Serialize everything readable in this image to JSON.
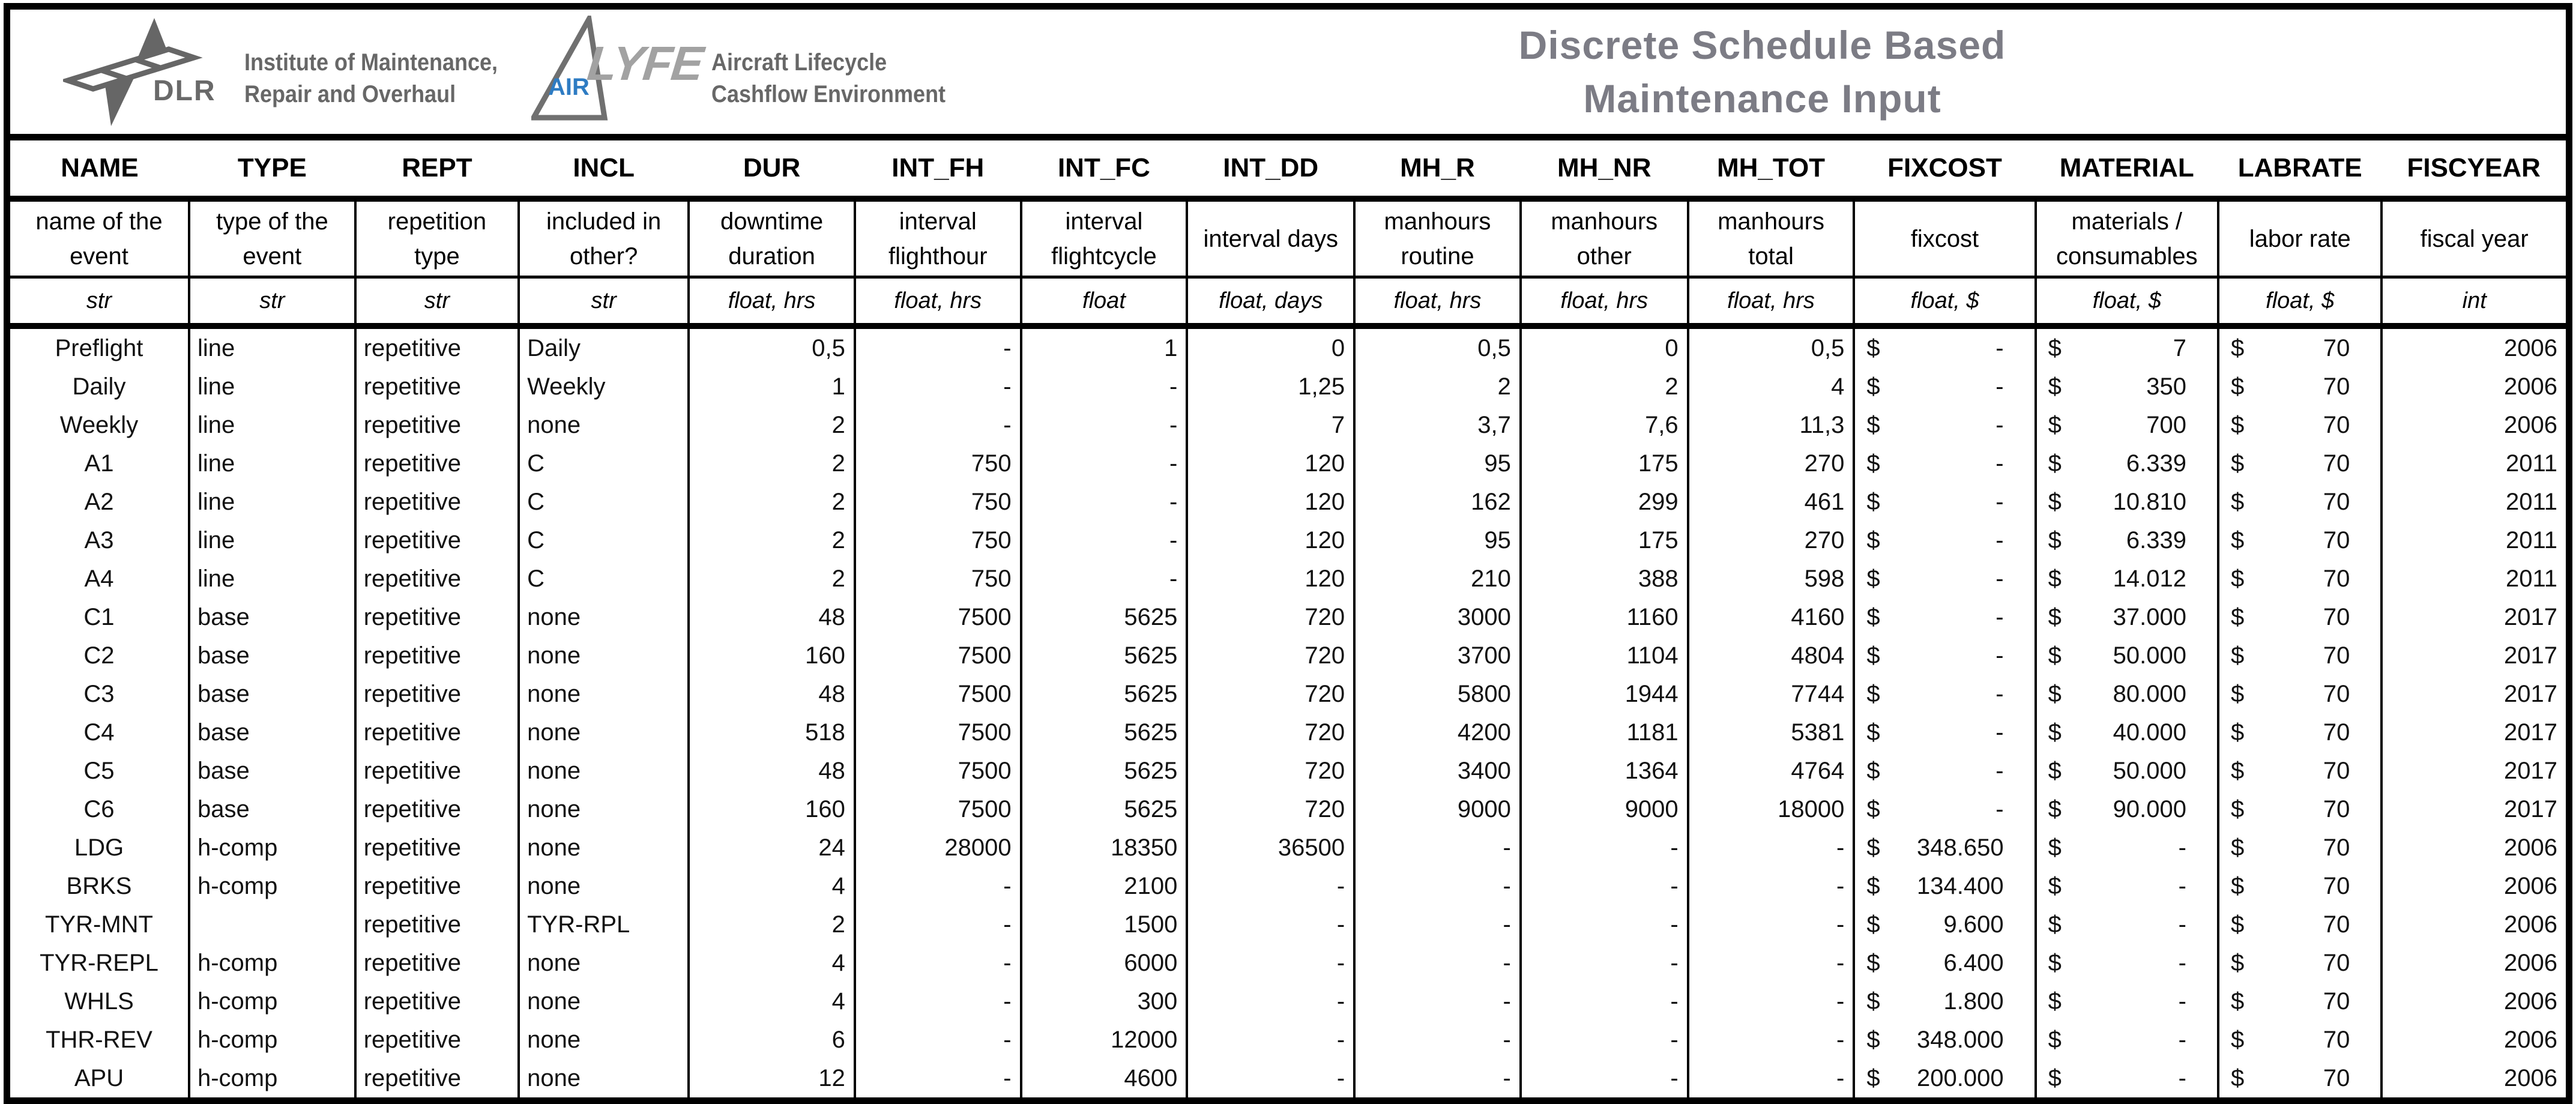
{
  "branding": {
    "dlr_wordmark": "DLR",
    "institute": [
      "Institute of Maintenance,",
      "Repair and Overhaul"
    ],
    "air_label": "AIR",
    "lyfe_label": "LYFE",
    "product": [
      "Aircraft Lifecycle",
      "Cashflow Environment"
    ]
  },
  "title": {
    "line1": "Discrete Schedule Based",
    "line2": "Maintenance Input"
  },
  "colors": {
    "title_gray": "#7c7c85",
    "logo_gray": "#676767",
    "lyfe_gray": "#a2a2a2",
    "air_blue": "#2e7cc3",
    "border_black": "#000000"
  },
  "table": {
    "currency_symbol": "$",
    "columns": [
      {
        "key": "NAME",
        "label": "NAME",
        "desc": "name of the event",
        "type": "str",
        "kind": "name"
      },
      {
        "key": "TYPE",
        "label": "TYPE",
        "desc": "type of the event",
        "type": "str",
        "kind": "text"
      },
      {
        "key": "REPT",
        "label": "REPT",
        "desc": "repetition type",
        "type": "str",
        "kind": "text"
      },
      {
        "key": "INCL",
        "label": "INCL",
        "desc": "included in other?",
        "type": "str",
        "kind": "text"
      },
      {
        "key": "DUR",
        "label": "DUR",
        "desc": "downtime duration",
        "type": "float, hrs",
        "kind": "num"
      },
      {
        "key": "INT_FH",
        "label": "INT_FH",
        "desc": "interval flighthour",
        "type": "float, hrs",
        "kind": "num"
      },
      {
        "key": "INT_FC",
        "label": "INT_FC",
        "desc": "interval flightcycle",
        "type": "float",
        "kind": "num"
      },
      {
        "key": "INT_DD",
        "label": "INT_DD",
        "desc": "interval days",
        "type": "float, days",
        "kind": "num"
      },
      {
        "key": "MH_R",
        "label": "MH_R",
        "desc": "manhours routine",
        "type": "float, hrs",
        "kind": "num"
      },
      {
        "key": "MH_NR",
        "label": "MH_NR",
        "desc": "manhours other",
        "type": "float, hrs",
        "kind": "num"
      },
      {
        "key": "MH_TOT",
        "label": "MH_TOT",
        "desc": "manhours total",
        "type": "float, hrs",
        "kind": "num"
      },
      {
        "key": "FIXCOST",
        "label": "FIXCOST",
        "desc": "fixcost",
        "type": "float, $",
        "kind": "acct"
      },
      {
        "key": "MATERIAL",
        "label": "MATERIAL",
        "desc": "materials / consumables",
        "type": "float, $",
        "kind": "acct"
      },
      {
        "key": "LABRATE",
        "label": "LABRATE",
        "desc": "labor rate",
        "type": "float, $",
        "kind": "acct"
      },
      {
        "key": "FISCYEAR",
        "label": "FISCYEAR",
        "desc": "fiscal year",
        "type": "int",
        "kind": "num"
      }
    ],
    "rows": [
      [
        "Preflight",
        "line",
        "repetitive",
        "Daily",
        "0,5",
        "-",
        "1",
        "0",
        "0,5",
        "0",
        "0,5",
        "-",
        "7",
        "70",
        "2006"
      ],
      [
        "Daily",
        "line",
        "repetitive",
        "Weekly",
        "1",
        "-",
        "-",
        "1,25",
        "2",
        "2",
        "4",
        "-",
        "350",
        "70",
        "2006"
      ],
      [
        "Weekly",
        "line",
        "repetitive",
        "none",
        "2",
        "-",
        "-",
        "7",
        "3,7",
        "7,6",
        "11,3",
        "-",
        "700",
        "70",
        "2006"
      ],
      [
        "A1",
        "line",
        "repetitive",
        "C",
        "2",
        "750",
        "-",
        "120",
        "95",
        "175",
        "270",
        "-",
        "6.339",
        "70",
        "2011"
      ],
      [
        "A2",
        "line",
        "repetitive",
        "C",
        "2",
        "750",
        "-",
        "120",
        "162",
        "299",
        "461",
        "-",
        "10.810",
        "70",
        "2011"
      ],
      [
        "A3",
        "line",
        "repetitive",
        "C",
        "2",
        "750",
        "-",
        "120",
        "95",
        "175",
        "270",
        "-",
        "6.339",
        "70",
        "2011"
      ],
      [
        "A4",
        "line",
        "repetitive",
        "C",
        "2",
        "750",
        "-",
        "120",
        "210",
        "388",
        "598",
        "-",
        "14.012",
        "70",
        "2011"
      ],
      [
        "C1",
        "base",
        "repetitive",
        "none",
        "48",
        "7500",
        "5625",
        "720",
        "3000",
        "1160",
        "4160",
        "-",
        "37.000",
        "70",
        "2017"
      ],
      [
        "C2",
        "base",
        "repetitive",
        "none",
        "160",
        "7500",
        "5625",
        "720",
        "3700",
        "1104",
        "4804",
        "-",
        "50.000",
        "70",
        "2017"
      ],
      [
        "C3",
        "base",
        "repetitive",
        "none",
        "48",
        "7500",
        "5625",
        "720",
        "5800",
        "1944",
        "7744",
        "-",
        "80.000",
        "70",
        "2017"
      ],
      [
        "C4",
        "base",
        "repetitive",
        "none",
        "518",
        "7500",
        "5625",
        "720",
        "4200",
        "1181",
        "5381",
        "-",
        "40.000",
        "70",
        "2017"
      ],
      [
        "C5",
        "base",
        "repetitive",
        "none",
        "48",
        "7500",
        "5625",
        "720",
        "3400",
        "1364",
        "4764",
        "-",
        "50.000",
        "70",
        "2017"
      ],
      [
        "C6",
        "base",
        "repetitive",
        "none",
        "160",
        "7500",
        "5625",
        "720",
        "9000",
        "9000",
        "18000",
        "-",
        "90.000",
        "70",
        "2017"
      ],
      [
        "LDG",
        "h-comp",
        "repetitive",
        "none",
        "24",
        "28000",
        "18350",
        "36500",
        "-",
        "-",
        "-",
        "348.650",
        "-",
        "70",
        "2006"
      ],
      [
        "BRKS",
        "h-comp",
        "repetitive",
        "none",
        "4",
        "-",
        "2100",
        "-",
        "-",
        "-",
        "-",
        "134.400",
        "-",
        "70",
        "2006"
      ],
      [
        "TYR-MNT",
        "",
        "repetitive",
        "TYR-RPL",
        "2",
        "-",
        "1500",
        "-",
        "-",
        "-",
        "-",
        "9.600",
        "-",
        "70",
        "2006"
      ],
      [
        "TYR-REPL",
        "h-comp",
        "repetitive",
        "none",
        "4",
        "-",
        "6000",
        "-",
        "-",
        "-",
        "-",
        "6.400",
        "-",
        "70",
        "2006"
      ],
      [
        "WHLS",
        "h-comp",
        "repetitive",
        "none",
        "4",
        "-",
        "300",
        "-",
        "-",
        "-",
        "-",
        "1.800",
        "-",
        "70",
        "2006"
      ],
      [
        "THR-REV",
        "h-comp",
        "repetitive",
        "none",
        "6",
        "-",
        "12000",
        "-",
        "-",
        "-",
        "-",
        "348.000",
        "-",
        "70",
        "2006"
      ],
      [
        "APU",
        "h-comp",
        "repetitive",
        "none",
        "12",
        "-",
        "4600",
        "-",
        "-",
        "-",
        "-",
        "200.000",
        "-",
        "70",
        "2006"
      ]
    ]
  }
}
